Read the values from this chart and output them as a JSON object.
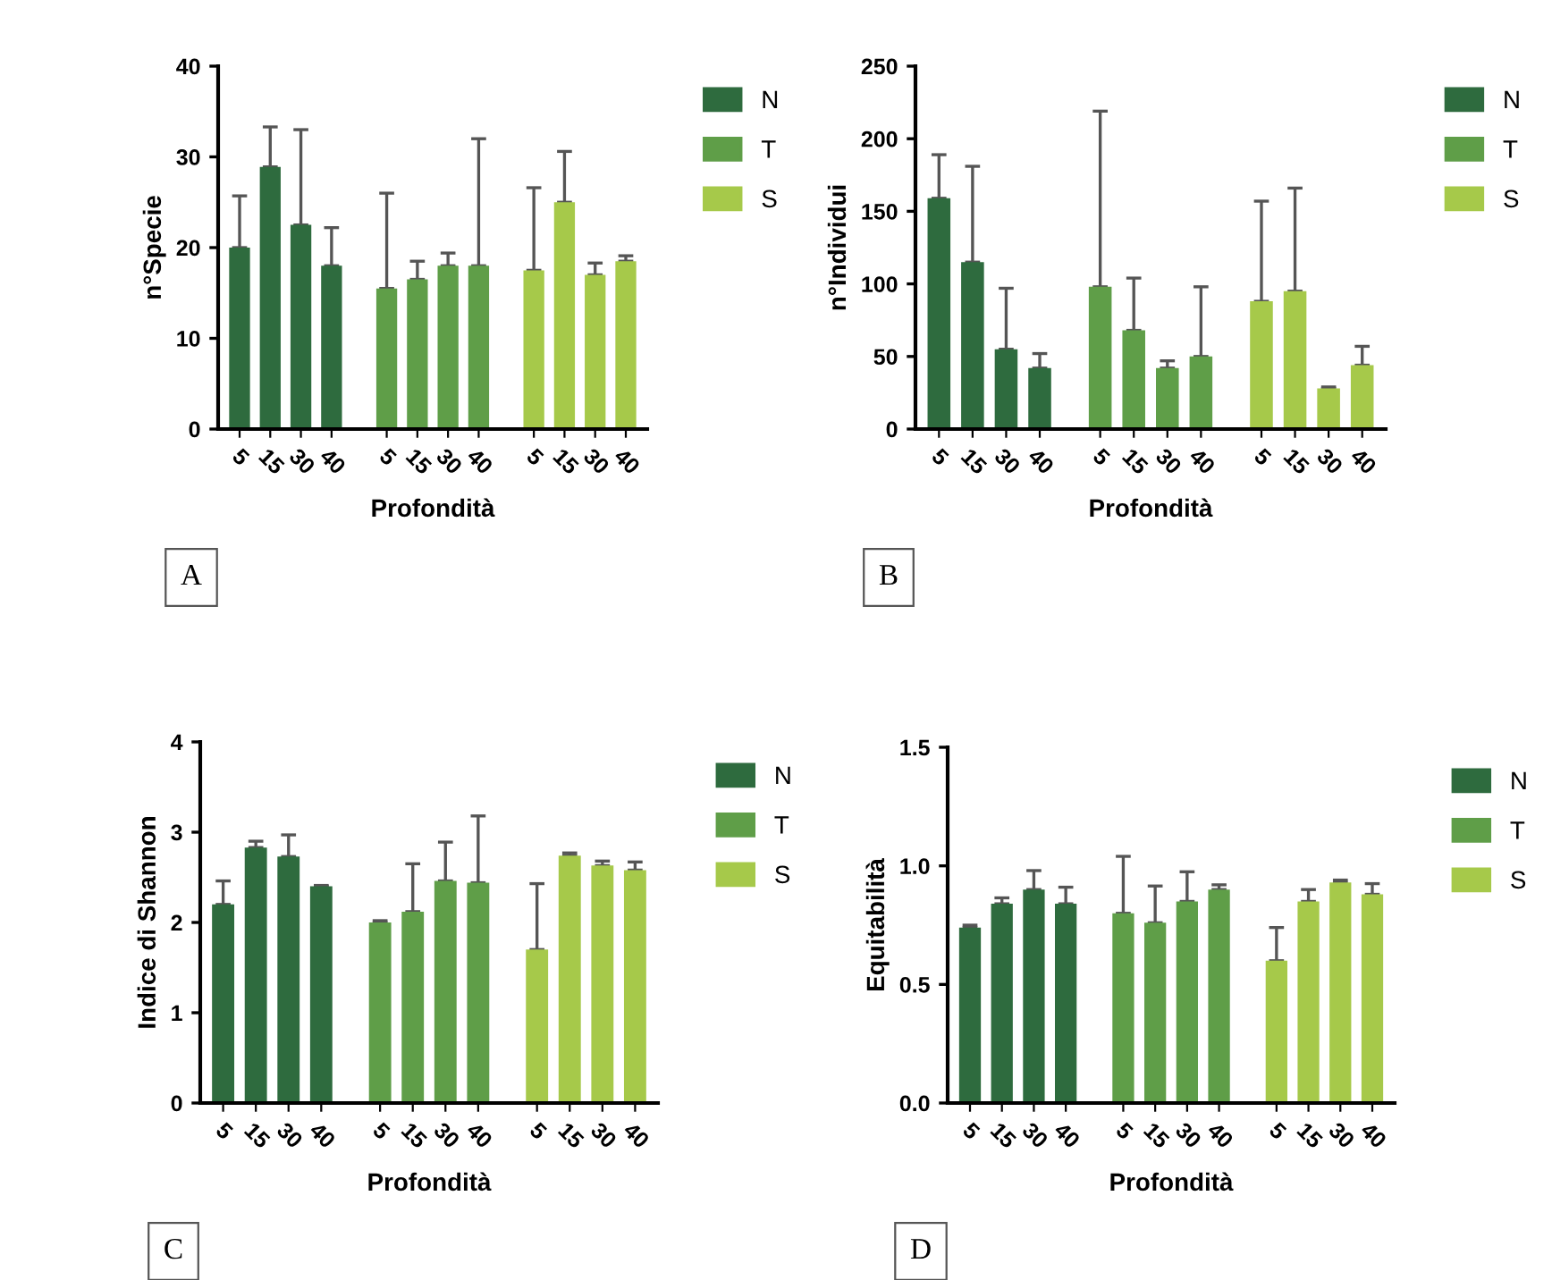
{
  "chart_data": [
    {
      "type": "bar",
      "ylabel": "n°Specie",
      "xlabel": "Profondità",
      "annotations": [
        "A"
      ],
      "legend": "top right",
      "grid": false,
      "categories": [
        "5",
        "15",
        "30",
        "40",
        "5",
        "15",
        "30",
        "40",
        "5",
        "15",
        "30",
        "40"
      ],
      "ylim": [
        0,
        40
      ],
      "yticks": [
        0,
        10,
        20,
        30,
        40
      ],
      "series": [
        {
          "name": "N",
          "color": "#2e6b3e",
          "values": [
            20,
            28.9,
            22.5,
            18,
            null,
            null,
            null,
            null,
            null,
            null,
            null,
            null
          ],
          "errors": [
            [
              20,
              25.7
            ],
            [
              28.9,
              33.3
            ],
            [
              22.5,
              33
            ],
            [
              18,
              22.2
            ],
            null,
            null,
            null,
            null,
            null,
            null,
            null,
            null
          ]
        },
        {
          "name": "T",
          "color": "#5f9e48",
          "values": [
            null,
            null,
            null,
            null,
            15.5,
            16.5,
            18,
            18,
            null,
            null,
            null,
            null
          ],
          "errors": [
            null,
            null,
            null,
            null,
            [
              15.5,
              26
            ],
            [
              16.5,
              18.5
            ],
            [
              18,
              19.4
            ],
            [
              18,
              32
            ],
            null,
            null,
            null,
            null
          ]
        },
        {
          "name": "S",
          "color": "#a6c94a",
          "values": [
            null,
            null,
            null,
            null,
            null,
            null,
            null,
            null,
            17.5,
            25,
            17,
            18.5
          ],
          "errors": [
            null,
            null,
            null,
            null,
            null,
            null,
            null,
            null,
            [
              17.5,
              26.6
            ],
            [
              25,
              30.6
            ],
            [
              17,
              18.3
            ],
            [
              18.5,
              19.1
            ]
          ]
        }
      ]
    },
    {
      "type": "bar",
      "ylabel": "n°Individui",
      "xlabel": "Profondità",
      "annotations": [
        "B"
      ],
      "legend": "top right",
      "grid": false,
      "categories": [
        "5",
        "15",
        "30",
        "40",
        "5",
        "15",
        "30",
        "40",
        "5",
        "15",
        "30",
        "40"
      ],
      "ylim": [
        0,
        250
      ],
      "yticks": [
        0,
        50,
        100,
        150,
        200,
        250
      ],
      "series": [
        {
          "name": "N",
          "color": "#2e6b3e",
          "values": [
            159,
            115,
            55,
            42,
            null,
            null,
            null,
            null,
            null,
            null,
            null,
            null
          ],
          "errors": [
            [
              159,
              189
            ],
            [
              115,
              181
            ],
            [
              55,
              97
            ],
            [
              42,
              52
            ],
            null,
            null,
            null,
            null,
            null,
            null,
            null,
            null
          ]
        },
        {
          "name": "T",
          "color": "#5f9e48",
          "values": [
            null,
            null,
            null,
            null,
            98,
            68,
            42,
            50,
            null,
            null,
            null,
            null
          ],
          "errors": [
            null,
            null,
            null,
            null,
            [
              98,
              219
            ],
            [
              68,
              104
            ],
            [
              42,
              47
            ],
            [
              50,
              98
            ],
            null,
            null,
            null,
            null
          ]
        },
        {
          "name": "S",
          "color": "#a6c94a",
          "values": [
            null,
            null,
            null,
            null,
            null,
            null,
            null,
            null,
            88,
            95,
            28,
            44
          ],
          "errors": [
            null,
            null,
            null,
            null,
            null,
            null,
            null,
            null,
            [
              88,
              157
            ],
            [
              95,
              166
            ],
            [
              28,
              29
            ],
            [
              44,
              57
            ]
          ]
        }
      ]
    },
    {
      "type": "bar",
      "ylabel": "Indice di Shannon",
      "xlabel": "Profondità",
      "annotations": [
        "C"
      ],
      "legend": "top right",
      "grid": false,
      "categories": [
        "5",
        "15",
        "30",
        "40",
        "5",
        "15",
        "30",
        "40",
        "5",
        "15",
        "30",
        "40"
      ],
      "ylim": [
        0,
        4
      ],
      "yticks": [
        0,
        1,
        2,
        3,
        4
      ],
      "series": [
        {
          "name": "N",
          "color": "#2e6b3e",
          "values": [
            2.2,
            2.83,
            2.73,
            2.4,
            null,
            null,
            null,
            null,
            null,
            null,
            null,
            null
          ],
          "errors": [
            [
              2.2,
              2.46
            ],
            [
              2.83,
              2.9
            ],
            [
              2.73,
              2.97
            ],
            [
              2.4,
              2.41
            ],
            null,
            null,
            null,
            null,
            null,
            null,
            null,
            null
          ]
        },
        {
          "name": "T",
          "color": "#5f9e48",
          "values": [
            null,
            null,
            null,
            null,
            2.0,
            2.12,
            2.46,
            2.44,
            null,
            null,
            null,
            null
          ],
          "errors": [
            null,
            null,
            null,
            null,
            [
              2.0,
              2.02
            ],
            [
              2.12,
              2.65
            ],
            [
              2.46,
              2.89
            ],
            [
              2.44,
              3.18
            ],
            null,
            null,
            null,
            null
          ]
        },
        {
          "name": "S",
          "color": "#a6c94a",
          "values": [
            null,
            null,
            null,
            null,
            null,
            null,
            null,
            null,
            1.7,
            2.74,
            2.63,
            2.58
          ],
          "errors": [
            null,
            null,
            null,
            null,
            null,
            null,
            null,
            null,
            [
              1.7,
              2.43
            ],
            [
              2.74,
              2.77
            ],
            [
              2.63,
              2.68
            ],
            [
              2.58,
              2.67
            ]
          ]
        }
      ]
    },
    {
      "type": "bar",
      "ylabel": "Equitabilità",
      "xlabel": "Profondità",
      "annotations": [
        "D"
      ],
      "legend": "top right",
      "grid": false,
      "categories": [
        "5",
        "15",
        "30",
        "40",
        "5",
        "15",
        "30",
        "40",
        "5",
        "15",
        "30",
        "40"
      ],
      "ylim": [
        0,
        1.5
      ],
      "yticks": [
        {
          "value": 0,
          "label": "0.0"
        },
        0.5,
        {
          "value": 1,
          "label": "1.0"
        },
        1.5
      ],
      "series": [
        {
          "name": "N",
          "color": "#2e6b3e",
          "values": [
            0.74,
            0.84,
            0.9,
            0.84,
            null,
            null,
            null,
            null,
            null,
            null,
            null,
            null
          ],
          "errors": [
            [
              0.74,
              0.75
            ],
            [
              0.84,
              0.865
            ],
            [
              0.9,
              0.98
            ],
            [
              0.84,
              0.91
            ],
            null,
            null,
            null,
            null,
            null,
            null,
            null,
            null
          ]
        },
        {
          "name": "T",
          "color": "#5f9e48",
          "values": [
            null,
            null,
            null,
            null,
            0.8,
            0.76,
            0.85,
            0.9,
            null,
            null,
            null,
            null
          ],
          "errors": [
            null,
            null,
            null,
            null,
            [
              0.8,
              1.04
            ],
            [
              0.76,
              0.915
            ],
            [
              0.85,
              0.975
            ],
            [
              0.9,
              0.92
            ],
            null,
            null,
            null,
            null
          ]
        },
        {
          "name": "S",
          "color": "#a6c94a",
          "values": [
            null,
            null,
            null,
            null,
            null,
            null,
            null,
            null,
            0.6,
            0.85,
            0.93,
            0.88
          ],
          "errors": [
            null,
            null,
            null,
            null,
            null,
            null,
            null,
            null,
            [
              0.6,
              0.74
            ],
            [
              0.85,
              0.9
            ],
            [
              0.93,
              0.94
            ],
            [
              0.88,
              0.925
            ]
          ]
        }
      ]
    }
  ]
}
